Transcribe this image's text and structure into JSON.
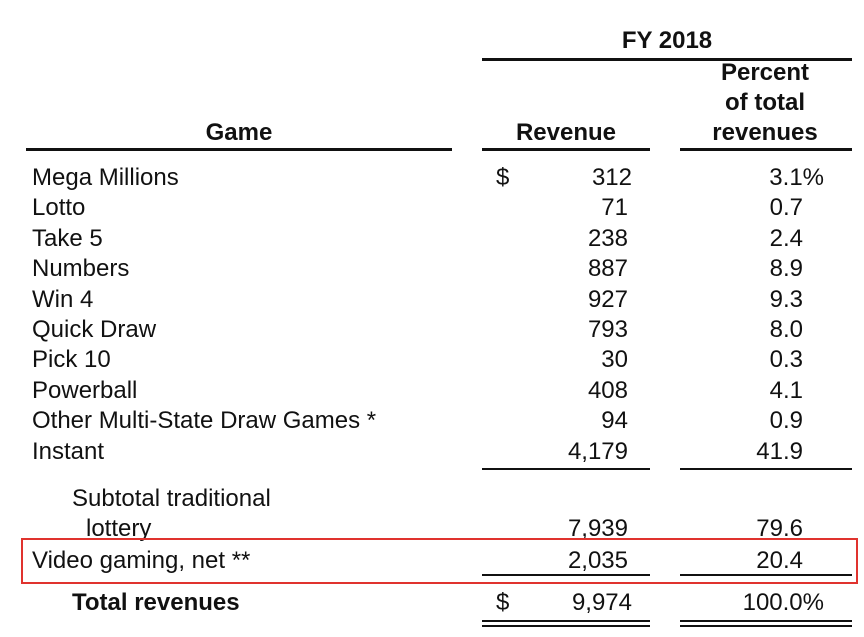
{
  "header": {
    "period": "FY 2018",
    "col_game": "Game",
    "col_revenue": "Revenue",
    "col_percent_lines": [
      "Percent",
      "of total",
      "revenues"
    ]
  },
  "currency_symbol": "$",
  "rows": [
    {
      "game": "Mega Millions",
      "revenue": "312",
      "percent": "3.1%"
    },
    {
      "game": "Lotto",
      "revenue": "71",
      "percent": "0.7"
    },
    {
      "game": "Take 5",
      "revenue": "238",
      "percent": "2.4"
    },
    {
      "game": "Numbers",
      "revenue": "887",
      "percent": "8.9"
    },
    {
      "game": "Win 4",
      "revenue": "927",
      "percent": "9.3"
    },
    {
      "game": "Quick Draw",
      "revenue": "793",
      "percent": "8.0"
    },
    {
      "game": "Pick 10",
      "revenue": "30",
      "percent": "0.3"
    },
    {
      "game": "Powerball",
      "revenue": "408",
      "percent": "4.1"
    },
    {
      "game": "Other Multi-State Draw Games *",
      "revenue": "94",
      "percent": "0.9"
    },
    {
      "game": "Instant",
      "revenue": "4,179",
      "percent": "41.9"
    }
  ],
  "subtotal": {
    "label_line1": "Subtotal traditional",
    "label_line2": "lottery",
    "revenue": "7,939",
    "percent": "79.6"
  },
  "video_gaming": {
    "label": "Video gaming, net **",
    "revenue": "2,035",
    "percent": "20.4"
  },
  "total": {
    "label": "Total revenues",
    "revenue": "9,974",
    "percent": "100.0%"
  },
  "colors": {
    "highlight": "#e0332e",
    "text": "#111111"
  }
}
